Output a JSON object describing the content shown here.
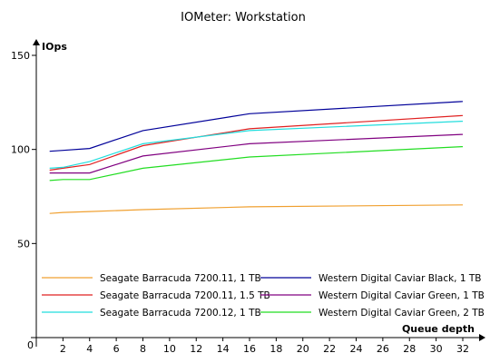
{
  "chart_data": {
    "type": "line",
    "title": "IOMeter: Workstation",
    "ylabel": "IOps",
    "xlabel": "Queue depth",
    "ylim": [
      0,
      150
    ],
    "xlim": [
      0,
      32
    ],
    "y_ticks": [
      0,
      50,
      100,
      150
    ],
    "x_ticks": [
      2,
      4,
      6,
      8,
      10,
      12,
      14,
      16,
      18,
      20,
      22,
      24,
      26,
      28,
      30,
      32
    ],
    "grid": false,
    "legend_position": "bottom",
    "x": [
      1,
      2,
      4,
      8,
      16,
      32
    ],
    "series": [
      {
        "name": "Seagate Barracuda 7200.11, 1 TB",
        "color": "#f0a030",
        "values": [
          66,
          66.5,
          67,
          68,
          69.5,
          70.5
        ]
      },
      {
        "name": "Western Digital Caviar Black, 1 TB",
        "color": "#000099",
        "values": [
          99,
          99.5,
          100.5,
          110,
          119,
          125.5
        ]
      },
      {
        "name": "Seagate Barracuda 7200.11, 1.5 TB",
        "color": "#e02020",
        "values": [
          89,
          90,
          92,
          102,
          111,
          118
        ]
      },
      {
        "name": "Western Digital Caviar Green, 1 TB",
        "color": "#800080",
        "values": [
          87.5,
          87.5,
          87.5,
          96.5,
          103,
          108
        ]
      },
      {
        "name": "Seagate Barracuda 7200.12, 1 TB",
        "color": "#22dddd",
        "values": [
          90,
          90.5,
          93.5,
          103,
          110,
          115
        ]
      },
      {
        "name": "Western Digital Caviar Green, 2 TB",
        "color": "#22dd22",
        "values": [
          83.5,
          84,
          84,
          90,
          96,
          101.5
        ]
      }
    ]
  }
}
